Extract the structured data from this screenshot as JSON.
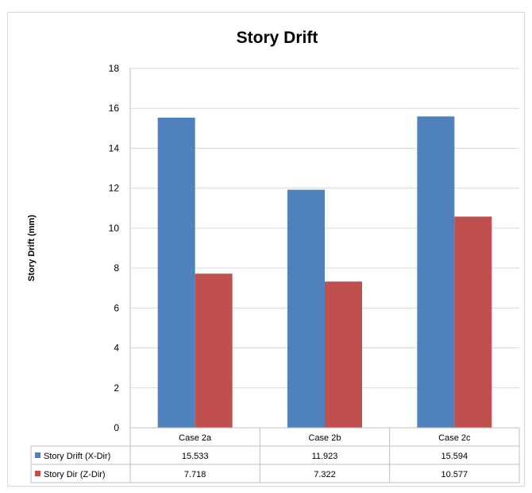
{
  "chart_data": {
    "type": "bar",
    "title": "Story Drift",
    "xlabel": "",
    "ylabel": "Story Drift (mm)",
    "ylim": [
      0,
      18
    ],
    "yticks": [
      "0",
      "2",
      "4",
      "6",
      "8",
      "10",
      "12",
      "14",
      "16",
      "18"
    ],
    "categories": [
      "Case 2a",
      "Case 2b",
      "Case 2c"
    ],
    "series": [
      {
        "name": "Story Drift (X-Dir)",
        "color": "#4f81bd",
        "values": [
          15.533,
          11.923,
          15.594
        ],
        "labels": [
          "15.533",
          "11.923",
          "15.594"
        ]
      },
      {
        "name": "Story Dir (Z-Dir)",
        "color": "#c0504d",
        "values": [
          7.718,
          7.322,
          10.577
        ],
        "labels": [
          "7.718",
          "7.322",
          "10.577"
        ]
      }
    ],
    "grid": true,
    "legend": "data-table"
  }
}
